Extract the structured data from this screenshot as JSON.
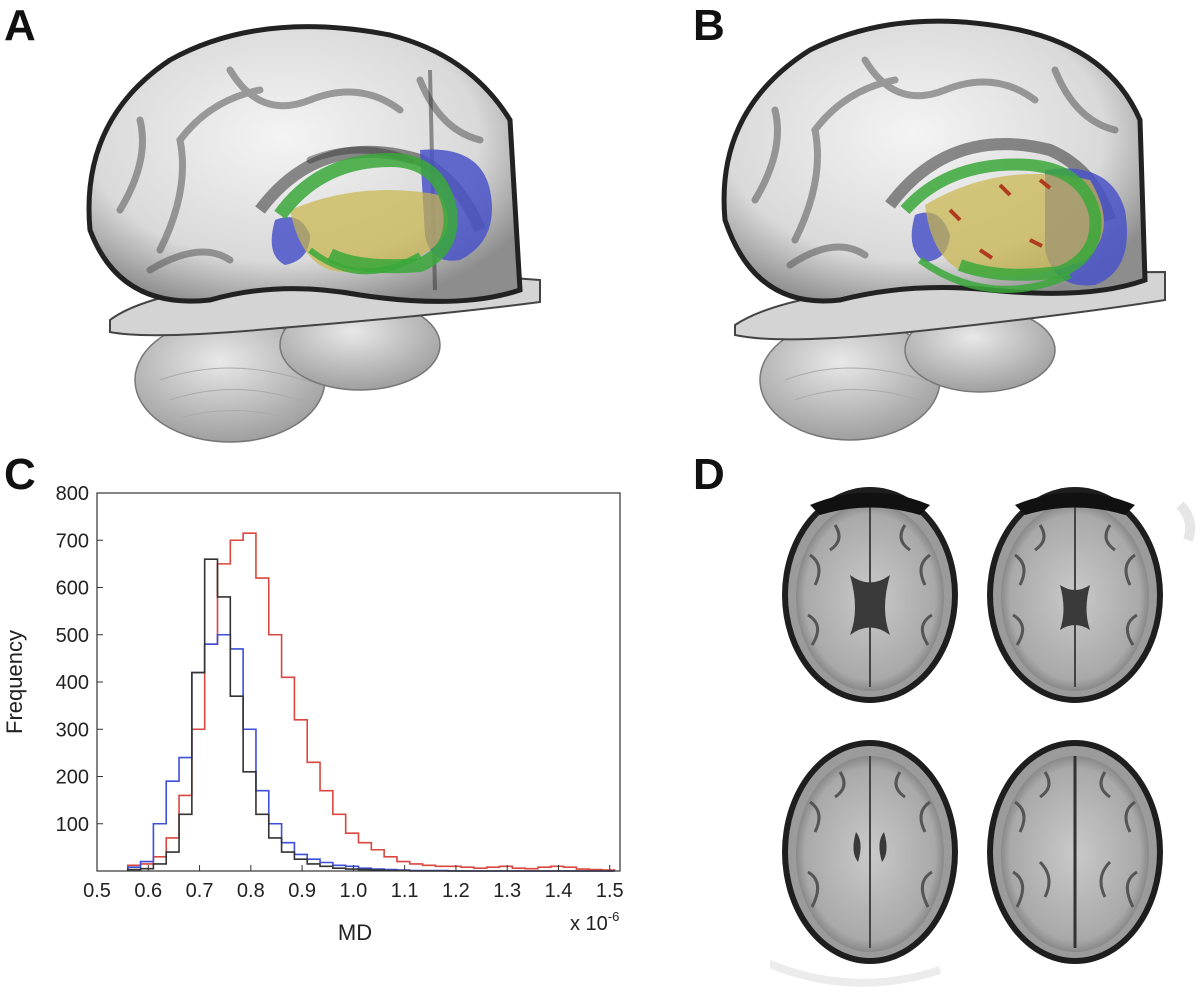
{
  "panels": {
    "a": {
      "letter": "A"
    },
    "b": {
      "letter": "B"
    },
    "c": {
      "letter": "C"
    },
    "d": {
      "letter": "D"
    }
  },
  "colors": {
    "tract_green": "#3aa83a",
    "tract_yellow": "#c9b74a",
    "roi_blue": "#4a55c8",
    "overlap_red": "#b03a20"
  },
  "icons": {
    "brain_3d": "sagittal-brain-render",
    "mri_slice": "axial-t1-slice"
  },
  "chart_data": {
    "type": "line",
    "step": true,
    "xlabel": "MD",
    "ylabel": "Frequency",
    "x_multiplier": "x 10",
    "x_multiplier_exp": "-6",
    "xlim": [
      0.5,
      1.52
    ],
    "ylim": [
      0,
      800
    ],
    "xticks": [
      {
        "value": 0.5,
        "label": "0.5"
      },
      {
        "value": 0.6,
        "label": "0.6"
      },
      {
        "value": 0.7,
        "label": "0.7"
      },
      {
        "value": 0.8,
        "label": "0.8"
      },
      {
        "value": 0.9,
        "label": "0.9"
      },
      {
        "value": 1.0,
        "label": "1.0"
      },
      {
        "value": 1.1,
        "label": "1.1"
      },
      {
        "value": 1.2,
        "label": "1.2"
      },
      {
        "value": 1.3,
        "label": "1.3"
      },
      {
        "value": 1.4,
        "label": "1.4"
      },
      {
        "value": 1.5,
        "label": "1.5"
      }
    ],
    "yticks": [
      {
        "value": 100,
        "label": "100"
      },
      {
        "value": 200,
        "label": "200"
      },
      {
        "value": 300,
        "label": "300"
      },
      {
        "value": 400,
        "label": "400"
      },
      {
        "value": 500,
        "label": "500"
      },
      {
        "value": 600,
        "label": "600"
      },
      {
        "value": 700,
        "label": "700"
      },
      {
        "value": 800,
        "label": "800"
      }
    ],
    "bin_edges": [
      0.56,
      0.585,
      0.61,
      0.635,
      0.66,
      0.685,
      0.71,
      0.735,
      0.76,
      0.785,
      0.81,
      0.835,
      0.86,
      0.885,
      0.91,
      0.935,
      0.96,
      0.985,
      1.01,
      1.035,
      1.06,
      1.085,
      1.11,
      1.135,
      1.16,
      1.185,
      1.21,
      1.235,
      1.26,
      1.285,
      1.31,
      1.335,
      1.36,
      1.385,
      1.41,
      1.435,
      1.46,
      1.485,
      1.51
    ],
    "series": [
      {
        "color": "#d9473f",
        "values": [
          12,
          15,
          30,
          70,
          160,
          300,
          480,
          650,
          700,
          715,
          620,
          500,
          410,
          320,
          230,
          170,
          120,
          80,
          60,
          45,
          30,
          20,
          15,
          12,
          10,
          10,
          8,
          6,
          8,
          10,
          6,
          5,
          8,
          10,
          8,
          4,
          3,
          2
        ]
      },
      {
        "color": "#3c4fd6",
        "values": [
          8,
          20,
          100,
          190,
          240,
          420,
          480,
          500,
          470,
          300,
          170,
          100,
          60,
          35,
          25,
          18,
          12,
          10,
          6,
          4,
          3,
          2,
          1,
          1,
          1,
          0,
          0,
          0,
          0,
          0,
          0,
          0,
          0,
          0,
          0,
          0,
          0,
          0
        ]
      },
      {
        "color": "#333333",
        "values": [
          3,
          5,
          15,
          40,
          120,
          420,
          660,
          580,
          370,
          210,
          120,
          70,
          40,
          25,
          15,
          10,
          6,
          4,
          3,
          2,
          1,
          1,
          0,
          0,
          0,
          0,
          0,
          0,
          0,
          0,
          0,
          0,
          0,
          0,
          0,
          0,
          0,
          0
        ]
      }
    ]
  }
}
